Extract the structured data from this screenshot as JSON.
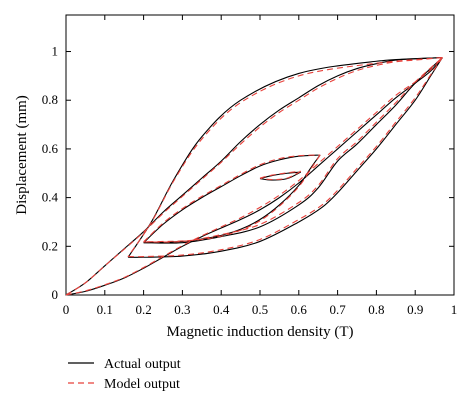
{
  "chart_data": {
    "type": "line",
    "title": "",
    "xlabel": "Magnetic induction density (T)",
    "ylabel": "Displacement (mm)",
    "xlim": [
      0,
      1
    ],
    "ylim": [
      0,
      1.15
    ],
    "x_ticks": [
      "0",
      "0.1",
      "0.2",
      "0.3",
      "0.4",
      "0.5",
      "0.6",
      "0.7",
      "0.8",
      "0.9",
      "1"
    ],
    "y_ticks": [
      "0",
      "0.2",
      "0.4",
      "0.6",
      "0.8",
      "1"
    ],
    "grid": false,
    "legend_position": "below-left",
    "series": [
      {
        "name": "Actual output",
        "color": "#000000",
        "dash": "solid",
        "curves": [
          {
            "role": "major-ascending",
            "points": [
              [
                0,
                0
              ],
              [
                0.05,
                0.015
              ],
              [
                0.1,
                0.04
              ],
              [
                0.15,
                0.07
              ],
              [
                0.2,
                0.11
              ],
              [
                0.25,
                0.155
              ],
              [
                0.3,
                0.2
              ],
              [
                0.35,
                0.24
              ],
              [
                0.4,
                0.275
              ],
              [
                0.45,
                0.31
              ],
              [
                0.5,
                0.35
              ],
              [
                0.55,
                0.4
              ],
              [
                0.6,
                0.46
              ],
              [
                0.65,
                0.53
              ],
              [
                0.7,
                0.6
              ],
              [
                0.75,
                0.67
              ],
              [
                0.8,
                0.74
              ],
              [
                0.85,
                0.81
              ],
              [
                0.9,
                0.87
              ],
              [
                0.94,
                0.92
              ],
              [
                0.97,
                0.975
              ]
            ]
          },
          {
            "role": "major-descending",
            "points": [
              [
                0.97,
                0.975
              ],
              [
                0.9,
                0.97
              ],
              [
                0.85,
                0.965
              ],
              [
                0.8,
                0.95
              ],
              [
                0.75,
                0.93
              ],
              [
                0.7,
                0.9
              ],
              [
                0.65,
                0.86
              ],
              [
                0.6,
                0.81
              ],
              [
                0.55,
                0.76
              ],
              [
                0.5,
                0.7
              ],
              [
                0.45,
                0.63
              ],
              [
                0.4,
                0.55
              ],
              [
                0.35,
                0.48
              ],
              [
                0.3,
                0.41
              ],
              [
                0.25,
                0.34
              ],
              [
                0.2,
                0.26
              ],
              [
                0.15,
                0.19
              ],
              [
                0.1,
                0.12
              ],
              [
                0.05,
                0.05
              ],
              [
                0,
                0
              ]
            ]
          },
          {
            "role": "minor-ascending-1",
            "points": [
              [
                0.16,
                0.155
              ],
              [
                0.2,
                0.155
              ],
              [
                0.3,
                0.16
              ],
              [
                0.4,
                0.18
              ],
              [
                0.5,
                0.22
              ],
              [
                0.6,
                0.3
              ],
              [
                0.66,
                0.36
              ],
              [
                0.7,
                0.42
              ],
              [
                0.75,
                0.51
              ],
              [
                0.8,
                0.6
              ],
              [
                0.85,
                0.7
              ],
              [
                0.9,
                0.8
              ],
              [
                0.94,
                0.9
              ],
              [
                0.97,
                0.975
              ]
            ]
          },
          {
            "role": "minor-descending-1",
            "points": [
              [
                0.97,
                0.975
              ],
              [
                0.8,
                0.96
              ],
              [
                0.6,
                0.91
              ],
              [
                0.45,
                0.8
              ],
              [
                0.35,
                0.65
              ],
              [
                0.28,
                0.48
              ],
              [
                0.22,
                0.3
              ],
              [
                0.16,
                0.155
              ]
            ]
          },
          {
            "role": "minor-ascending-2",
            "points": [
              [
                0.2,
                0.215
              ],
              [
                0.3,
                0.215
              ],
              [
                0.4,
                0.24
              ],
              [
                0.5,
                0.28
              ],
              [
                0.6,
                0.37
              ],
              [
                0.65,
                0.44
              ],
              [
                0.7,
                0.55
              ],
              [
                0.75,
                0.62
              ],
              [
                0.8,
                0.7
              ],
              [
                0.85,
                0.78
              ],
              [
                0.9,
                0.87
              ],
              [
                0.97,
                0.975
              ]
            ]
          },
          {
            "role": "inner-loop-up",
            "points": [
              [
                0.2,
                0.215
              ],
              [
                0.25,
                0.29
              ],
              [
                0.3,
                0.35
              ],
              [
                0.35,
                0.4
              ],
              [
                0.4,
                0.445
              ],
              [
                0.45,
                0.49
              ],
              [
                0.5,
                0.53
              ],
              [
                0.55,
                0.555
              ],
              [
                0.6,
                0.57
              ],
              [
                0.655,
                0.575
              ]
            ]
          },
          {
            "role": "inner-loop-down",
            "points": [
              [
                0.655,
                0.575
              ],
              [
                0.63,
                0.52
              ],
              [
                0.6,
                0.45
              ],
              [
                0.55,
                0.37
              ],
              [
                0.5,
                0.31
              ],
              [
                0.45,
                0.27
              ],
              [
                0.4,
                0.245
              ],
              [
                0.35,
                0.23
              ],
              [
                0.3,
                0.22
              ],
              [
                0.2,
                0.215
              ]
            ]
          },
          {
            "role": "small-loop-up",
            "points": [
              [
                0.5,
                0.478
              ],
              [
                0.53,
                0.49
              ],
              [
                0.57,
                0.5
              ],
              [
                0.605,
                0.505
              ]
            ]
          },
          {
            "role": "small-loop-down",
            "points": [
              [
                0.605,
                0.505
              ],
              [
                0.57,
                0.478
              ],
              [
                0.53,
                0.472
              ],
              [
                0.5,
                0.478
              ]
            ]
          }
        ]
      },
      {
        "name": "Model output",
        "color": "#e8413b",
        "dash": "dashed",
        "curves": [
          {
            "role": "major-ascending",
            "points": [
              [
                0,
                0
              ],
              [
                0.05,
                0.017
              ],
              [
                0.1,
                0.042
              ],
              [
                0.15,
                0.072
              ],
              [
                0.2,
                0.113
              ],
              [
                0.25,
                0.158
              ],
              [
                0.3,
                0.203
              ],
              [
                0.35,
                0.243
              ],
              [
                0.4,
                0.28
              ],
              [
                0.45,
                0.317
              ],
              [
                0.5,
                0.36
              ],
              [
                0.55,
                0.41
              ],
              [
                0.6,
                0.47
              ],
              [
                0.65,
                0.54
              ],
              [
                0.7,
                0.61
              ],
              [
                0.75,
                0.68
              ],
              [
                0.8,
                0.75
              ],
              [
                0.85,
                0.82
              ],
              [
                0.9,
                0.875
              ],
              [
                0.94,
                0.925
              ],
              [
                0.97,
                0.975
              ]
            ]
          },
          {
            "role": "major-descending",
            "points": [
              [
                0.97,
                0.975
              ],
              [
                0.9,
                0.965
              ],
              [
                0.85,
                0.958
              ],
              [
                0.8,
                0.943
              ],
              [
                0.75,
                0.922
              ],
              [
                0.7,
                0.89
              ],
              [
                0.65,
                0.85
              ],
              [
                0.6,
                0.8
              ],
              [
                0.55,
                0.75
              ],
              [
                0.5,
                0.69
              ],
              [
                0.45,
                0.62
              ],
              [
                0.4,
                0.545
              ],
              [
                0.35,
                0.475
              ],
              [
                0.3,
                0.405
              ],
              [
                0.25,
                0.335
              ],
              [
                0.2,
                0.258
              ],
              [
                0.15,
                0.188
              ],
              [
                0.1,
                0.12
              ],
              [
                0.05,
                0.05
              ],
              [
                0,
                0
              ]
            ]
          },
          {
            "role": "minor-ascending-1",
            "points": [
              [
                0.16,
                0.158
              ],
              [
                0.2,
                0.158
              ],
              [
                0.3,
                0.164
              ],
              [
                0.4,
                0.186
              ],
              [
                0.5,
                0.228
              ],
              [
                0.6,
                0.31
              ],
              [
                0.66,
                0.37
              ],
              [
                0.7,
                0.43
              ],
              [
                0.75,
                0.52
              ],
              [
                0.8,
                0.61
              ],
              [
                0.85,
                0.71
              ],
              [
                0.9,
                0.81
              ],
              [
                0.94,
                0.905
              ],
              [
                0.97,
                0.975
              ]
            ]
          },
          {
            "role": "minor-descending-1",
            "points": [
              [
                0.97,
                0.975
              ],
              [
                0.8,
                0.952
              ],
              [
                0.6,
                0.9
              ],
              [
                0.45,
                0.79
              ],
              [
                0.35,
                0.64
              ],
              [
                0.28,
                0.475
              ],
              [
                0.22,
                0.298
              ],
              [
                0.16,
                0.158
              ]
            ]
          },
          {
            "role": "minor-ascending-2",
            "points": [
              [
                0.2,
                0.218
              ],
              [
                0.3,
                0.22
              ],
              [
                0.4,
                0.248
              ],
              [
                0.5,
                0.29
              ],
              [
                0.6,
                0.38
              ],
              [
                0.65,
                0.45
              ],
              [
                0.7,
                0.56
              ],
              [
                0.75,
                0.63
              ],
              [
                0.8,
                0.71
              ],
              [
                0.85,
                0.79
              ],
              [
                0.9,
                0.875
              ],
              [
                0.97,
                0.975
              ]
            ]
          },
          {
            "role": "inner-loop-up",
            "points": [
              [
                0.2,
                0.218
              ],
              [
                0.25,
                0.295
              ],
              [
                0.3,
                0.355
              ],
              [
                0.35,
                0.405
              ],
              [
                0.4,
                0.45
              ],
              [
                0.45,
                0.495
              ],
              [
                0.5,
                0.535
              ],
              [
                0.55,
                0.56
              ],
              [
                0.6,
                0.572
              ],
              [
                0.655,
                0.575
              ]
            ]
          },
          {
            "role": "inner-loop-down",
            "points": [
              [
                0.655,
                0.575
              ],
              [
                0.63,
                0.515
              ],
              [
                0.6,
                0.445
              ],
              [
                0.55,
                0.365
              ],
              [
                0.5,
                0.305
              ],
              [
                0.45,
                0.266
              ],
              [
                0.4,
                0.242
              ],
              [
                0.35,
                0.228
              ],
              [
                0.3,
                0.222
              ],
              [
                0.2,
                0.218
              ]
            ]
          },
          {
            "role": "small-loop-up",
            "points": [
              [
                0.5,
                0.48
              ],
              [
                0.53,
                0.492
              ],
              [
                0.57,
                0.502
              ],
              [
                0.605,
                0.508
              ]
            ]
          },
          {
            "role": "small-loop-down",
            "points": [
              [
                0.605,
                0.508
              ],
              [
                0.57,
                0.48
              ],
              [
                0.53,
                0.474
              ],
              [
                0.5,
                0.48
              ]
            ]
          }
        ]
      }
    ]
  }
}
